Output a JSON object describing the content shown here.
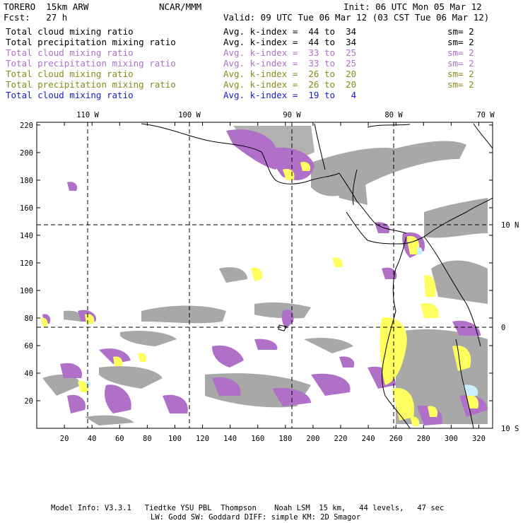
{
  "header": {
    "model": "TORERO  15km ARW",
    "center": "NCAR/MMM",
    "init": "Init: 06 UTC Mon 05 Mar 12",
    "fcst": "Fcst:   27 h",
    "valid": "Valid: 09 UTC Tue 06 Mar 12 (03 CST Tue 06 Mar 12)"
  },
  "legend": [
    {
      "field": "Total cloud mixing ratio",
      "avg": "Avg. k-index =  44 to  34",
      "sm": "sm= 2",
      "color": "#000000"
    },
    {
      "field": "Total precipitation mixing ratio",
      "avg": "Avg. k-index =  44 to  34",
      "sm": "sm= 2",
      "color": "#000000"
    },
    {
      "field": "Total cloud mixing ratio",
      "avg": "Avg. k-index =  33 to  25",
      "sm": "sm= 2",
      "color": "#b070c8"
    },
    {
      "field": "Total precipitation mixing ratio",
      "avg": "Avg. k-index =  33 to  25",
      "sm": "sm= 2",
      "color": "#b070c8"
    },
    {
      "field": "Total cloud mixing ratio",
      "avg": "Avg. k-index =  26 to  20",
      "sm": "sm= 2",
      "color": "#8a8a1a"
    },
    {
      "field": "Total precipitation mixing ratio",
      "avg": "Avg. k-index =  26 to  20",
      "sm": "sm= 2",
      "color": "#8a8a1a"
    },
    {
      "field": "Total cloud mixing ratio",
      "avg": "Avg. k-index =  19 to   4",
      "sm": "",
      "color": "#1a1ad0"
    }
  ],
  "axes": {
    "lon_labels": [
      "110 W",
      "100 W",
      "90 W",
      "80 W",
      "70 W"
    ],
    "lat_labels": [
      "10 N",
      "0",
      "10 S"
    ],
    "x_ticks": [
      "20",
      "40",
      "60",
      "80",
      "100",
      "120",
      "140",
      "160",
      "180",
      "200",
      "220",
      "240",
      "260",
      "280",
      "300",
      "320"
    ],
    "y_ticks": [
      "20",
      "40",
      "60",
      "80",
      "100",
      "120",
      "140",
      "160",
      "180",
      "200",
      "220"
    ]
  },
  "colors": {
    "gray": "#a8a8a8",
    "violet": "#b070c8",
    "yellow": "#ffff60",
    "cyan": "#c8f0ff"
  },
  "footer": {
    "line1": "Model Info: V3.3.1   Tiedtke YSU PBL  Thompson    Noah LSM  15 km,   44 levels,   47 sec",
    "line2": "LW: Godd SW: Goddard DIFF: simple KM: 2D Smagor"
  }
}
